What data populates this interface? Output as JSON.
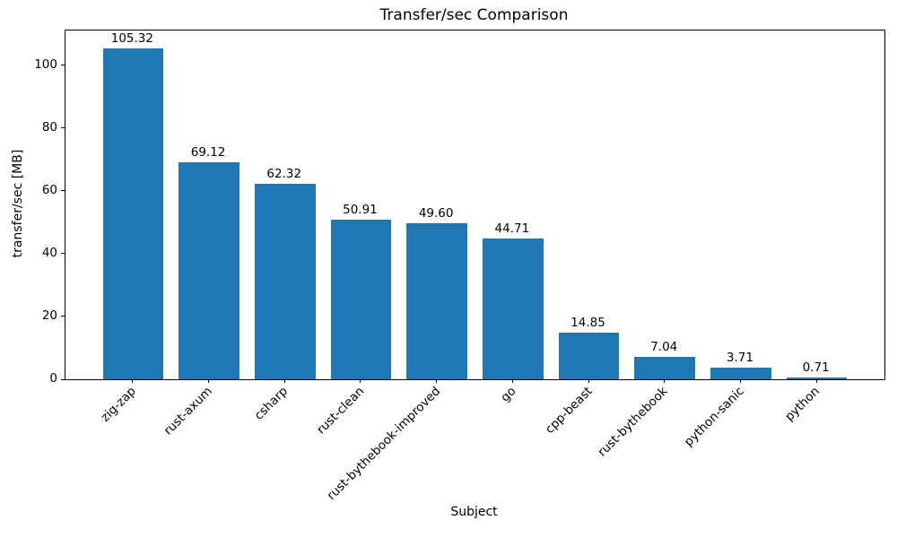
{
  "figure": {
    "background": "#ffffff",
    "text_color": "#000000"
  },
  "chart_data": {
    "type": "bar",
    "title": "Transfer/sec Comparison",
    "xlabel": "Subject",
    "ylabel": "transfer/sec [MB]",
    "categories": [
      "zig-zap",
      "rust-axum",
      "csharp",
      "rust-clean",
      "rust-bythebook-improved",
      "go",
      "cpp-beast",
      "rust-bythebook",
      "python-sanic",
      "python"
    ],
    "values": [
      105.32,
      69.12,
      62.32,
      50.91,
      49.6,
      44.71,
      14.85,
      7.04,
      3.71,
      0.71
    ],
    "value_labels": [
      "105.32",
      "69.12",
      "62.32",
      "50.91",
      "49.60",
      "44.71",
      "14.85",
      "7.04",
      "3.71",
      "0.71"
    ],
    "yticks": [
      0,
      20,
      40,
      60,
      80,
      100
    ],
    "ylim": [
      0,
      111.1
    ],
    "bar_color": "#1f77b4",
    "bar_width_fraction": 0.8,
    "grid": false,
    "legend": null,
    "x_tick_rotation_deg": 45
  }
}
